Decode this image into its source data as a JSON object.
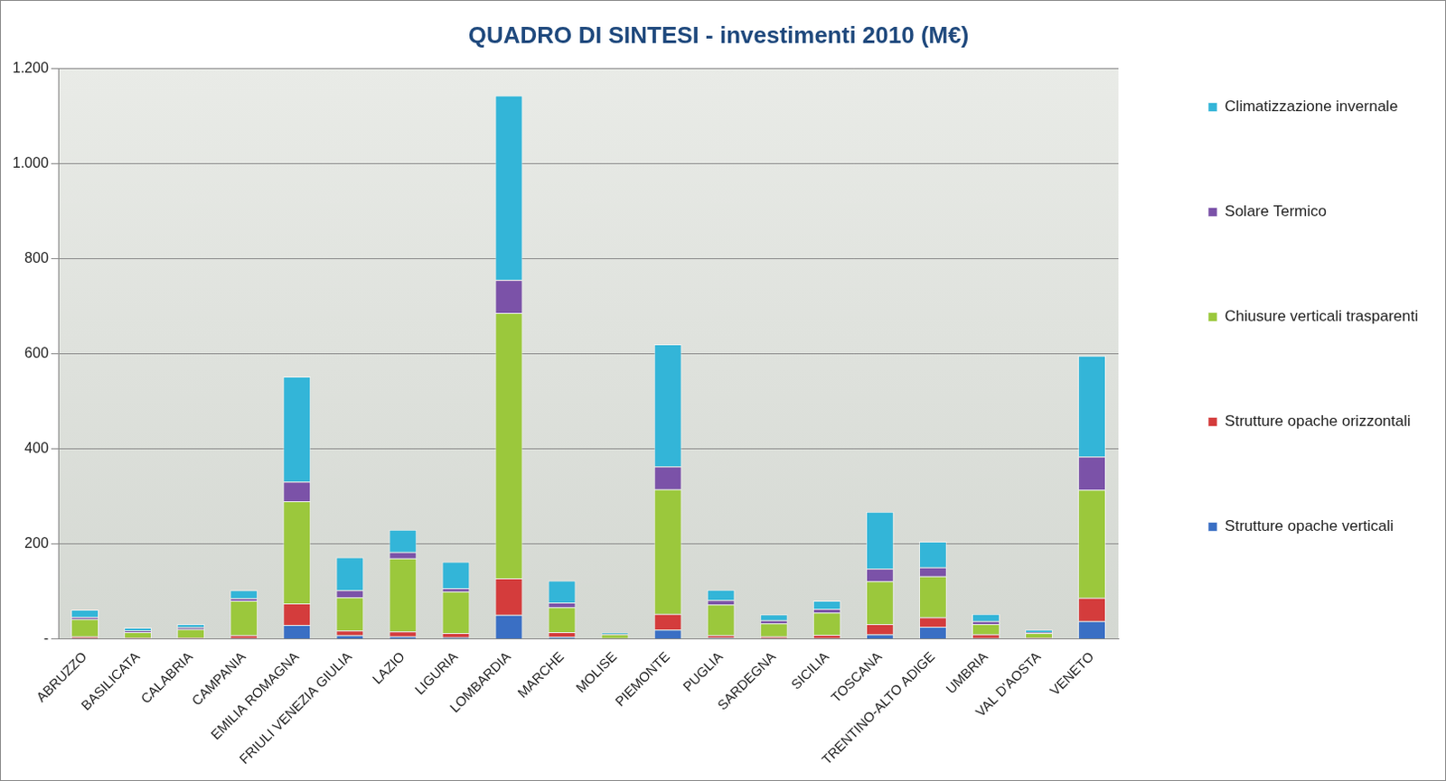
{
  "chart_data": {
    "type": "bar",
    "stacked": true,
    "title": "QUADRO DI SINTESI - investimenti 2010 (M€)",
    "categories": [
      "ABRUZZO",
      "BASILICATA",
      "CALABRIA",
      "CAMPANIA",
      "EMILIA ROMAGNA",
      "FRIULI VENEZIA GIULIA",
      "LAZIO",
      "LIGURIA",
      "LOMBARDIA",
      "MARCHE",
      "MOLISE",
      "PIEMONTE",
      "PUGLIA",
      "SARDEGNA",
      "SICILIA",
      "TOSCANA",
      "TRENTINO-ALTO ADIGE",
      "UMBRIA",
      "VAL D'AOSTA",
      "VENETO"
    ],
    "series": [
      {
        "name": "Strutture opache verticali",
        "color": "#3a6fc4",
        "values": [
          2,
          1,
          1,
          2,
          30,
          8,
          6,
          4,
          51,
          5,
          1,
          20,
          3,
          2,
          2,
          10,
          26,
          2,
          1,
          38
        ]
      },
      {
        "name": "Strutture opache orizzontali",
        "color": "#d43c3c",
        "values": [
          4,
          2,
          2,
          6,
          45,
          10,
          10,
          9,
          77,
          10,
          1,
          33,
          5,
          4,
          7,
          22,
          20,
          8,
          2,
          49
        ]
      },
      {
        "name": "Chiusure verticali trasparenti",
        "color": "#9bc83c",
        "values": [
          36,
          12,
          18,
          73,
          215,
          70,
          154,
          87,
          558,
          52,
          8,
          262,
          65,
          27,
          47,
          90,
          86,
          22,
          10,
          227
        ]
      },
      {
        "name": "Solare Termico",
        "color": "#7b52a8",
        "values": [
          5,
          3,
          4,
          5,
          41,
          15,
          13,
          7,
          69,
          10,
          1,
          48,
          9,
          7,
          8,
          26,
          19,
          6,
          2,
          70
        ]
      },
      {
        "name": "Climatizzazione invernale",
        "color": "#33b5d8",
        "values": [
          15,
          6,
          7,
          17,
          221,
          69,
          47,
          56,
          388,
          46,
          3,
          257,
          22,
          12,
          17,
          120,
          54,
          15,
          5,
          212
        ]
      }
    ],
    "ylim": [
      0,
      1200
    ],
    "yticks": [
      {
        "value": 0,
        "label": "-"
      },
      200,
      400,
      600,
      800,
      {
        "value": 1000,
        "label": "1.000"
      },
      {
        "value": 1200,
        "label": "1.200"
      }
    ],
    "grid": true,
    "legend": "right"
  }
}
